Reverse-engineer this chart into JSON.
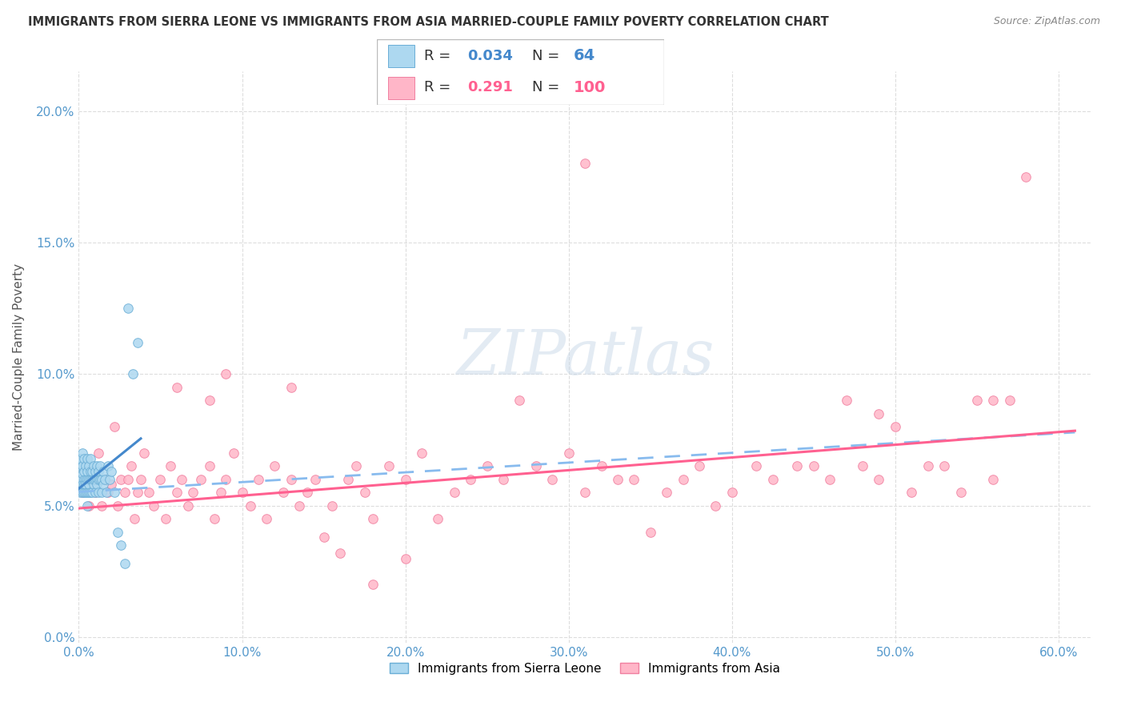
{
  "title": "IMMIGRANTS FROM SIERRA LEONE VS IMMIGRANTS FROM ASIA MARRIED-COUPLE FAMILY POVERTY CORRELATION CHART",
  "source": "Source: ZipAtlas.com",
  "ylabel": "Married-Couple Family Poverty",
  "legend_sierra": "Immigrants from Sierra Leone",
  "legend_asia": "Immigrants from Asia",
  "r_sierra": 0.034,
  "n_sierra": 64,
  "r_asia": 0.291,
  "n_asia": 100,
  "color_sierra": "#ADD8F0",
  "color_asia": "#FFB6C8",
  "edge_sierra": "#6AAED6",
  "edge_asia": "#F080A0",
  "trend_sierra_color": "#4488CC",
  "trend_asia_dashed_color": "#88BBEE",
  "trend_asia_solid_color": "#FF6090",
  "xlim": [
    0.0,
    0.62
  ],
  "ylim": [
    -0.002,
    0.215
  ],
  "xticks": [
    0.0,
    0.1,
    0.2,
    0.3,
    0.4,
    0.5,
    0.6
  ],
  "yticks": [
    0.0,
    0.05,
    0.1,
    0.15,
    0.2
  ],
  "background": "#FFFFFF",
  "watermark": "ZIPatlas",
  "sierra_x": [
    0.001,
    0.001,
    0.001,
    0.001,
    0.002,
    0.002,
    0.002,
    0.002,
    0.002,
    0.003,
    0.003,
    0.003,
    0.003,
    0.003,
    0.004,
    0.004,
    0.004,
    0.004,
    0.005,
    0.005,
    0.005,
    0.005,
    0.005,
    0.006,
    0.006,
    0.006,
    0.006,
    0.007,
    0.007,
    0.007,
    0.007,
    0.008,
    0.008,
    0.008,
    0.009,
    0.009,
    0.009,
    0.01,
    0.01,
    0.01,
    0.011,
    0.011,
    0.011,
    0.012,
    0.012,
    0.012,
    0.013,
    0.013,
    0.014,
    0.014,
    0.015,
    0.015,
    0.016,
    0.017,
    0.018,
    0.019,
    0.02,
    0.022,
    0.024,
    0.026,
    0.028,
    0.03,
    0.033,
    0.036
  ],
  "sierra_y": [
    0.06,
    0.065,
    0.055,
    0.068,
    0.058,
    0.062,
    0.055,
    0.07,
    0.065,
    0.06,
    0.055,
    0.063,
    0.058,
    0.068,
    0.06,
    0.055,
    0.065,
    0.058,
    0.06,
    0.063,
    0.055,
    0.068,
    0.05,
    0.06,
    0.055,
    0.065,
    0.058,
    0.06,
    0.063,
    0.055,
    0.068,
    0.06,
    0.055,
    0.063,
    0.058,
    0.06,
    0.065,
    0.06,
    0.055,
    0.063,
    0.06,
    0.065,
    0.058,
    0.06,
    0.055,
    0.063,
    0.06,
    0.065,
    0.055,
    0.06,
    0.058,
    0.063,
    0.06,
    0.055,
    0.065,
    0.06,
    0.063,
    0.055,
    0.04,
    0.035,
    0.028,
    0.125,
    0.1,
    0.112
  ],
  "asia_x": [
    0.002,
    0.004,
    0.006,
    0.008,
    0.01,
    0.012,
    0.014,
    0.016,
    0.018,
    0.02,
    0.022,
    0.024,
    0.026,
    0.028,
    0.03,
    0.032,
    0.034,
    0.036,
    0.038,
    0.04,
    0.043,
    0.046,
    0.05,
    0.053,
    0.056,
    0.06,
    0.063,
    0.067,
    0.07,
    0.075,
    0.08,
    0.083,
    0.087,
    0.09,
    0.095,
    0.1,
    0.105,
    0.11,
    0.115,
    0.12,
    0.125,
    0.13,
    0.135,
    0.14,
    0.145,
    0.15,
    0.155,
    0.16,
    0.165,
    0.17,
    0.175,
    0.18,
    0.19,
    0.2,
    0.21,
    0.22,
    0.23,
    0.24,
    0.25,
    0.26,
    0.27,
    0.28,
    0.29,
    0.3,
    0.31,
    0.32,
    0.33,
    0.34,
    0.35,
    0.36,
    0.37,
    0.38,
    0.39,
    0.4,
    0.415,
    0.425,
    0.44,
    0.45,
    0.46,
    0.47,
    0.48,
    0.49,
    0.5,
    0.51,
    0.52,
    0.53,
    0.54,
    0.55,
    0.56,
    0.57,
    0.58,
    0.31,
    0.06,
    0.08,
    0.2,
    0.18,
    0.09,
    0.13,
    0.49,
    0.56
  ],
  "asia_y": [
    0.055,
    0.06,
    0.05,
    0.058,
    0.055,
    0.07,
    0.05,
    0.06,
    0.055,
    0.058,
    0.08,
    0.05,
    0.06,
    0.055,
    0.06,
    0.065,
    0.045,
    0.055,
    0.06,
    0.07,
    0.055,
    0.05,
    0.06,
    0.045,
    0.065,
    0.055,
    0.06,
    0.05,
    0.055,
    0.06,
    0.065,
    0.045,
    0.055,
    0.06,
    0.07,
    0.055,
    0.05,
    0.06,
    0.045,
    0.065,
    0.055,
    0.06,
    0.05,
    0.055,
    0.06,
    0.038,
    0.05,
    0.032,
    0.06,
    0.065,
    0.055,
    0.045,
    0.065,
    0.06,
    0.07,
    0.045,
    0.055,
    0.06,
    0.065,
    0.06,
    0.09,
    0.065,
    0.06,
    0.07,
    0.055,
    0.065,
    0.06,
    0.06,
    0.04,
    0.055,
    0.06,
    0.065,
    0.05,
    0.055,
    0.065,
    0.06,
    0.065,
    0.065,
    0.06,
    0.09,
    0.065,
    0.06,
    0.08,
    0.055,
    0.065,
    0.065,
    0.055,
    0.09,
    0.06,
    0.09,
    0.175,
    0.18,
    0.095,
    0.09,
    0.03,
    0.02,
    0.1,
    0.095,
    0.085,
    0.09
  ]
}
